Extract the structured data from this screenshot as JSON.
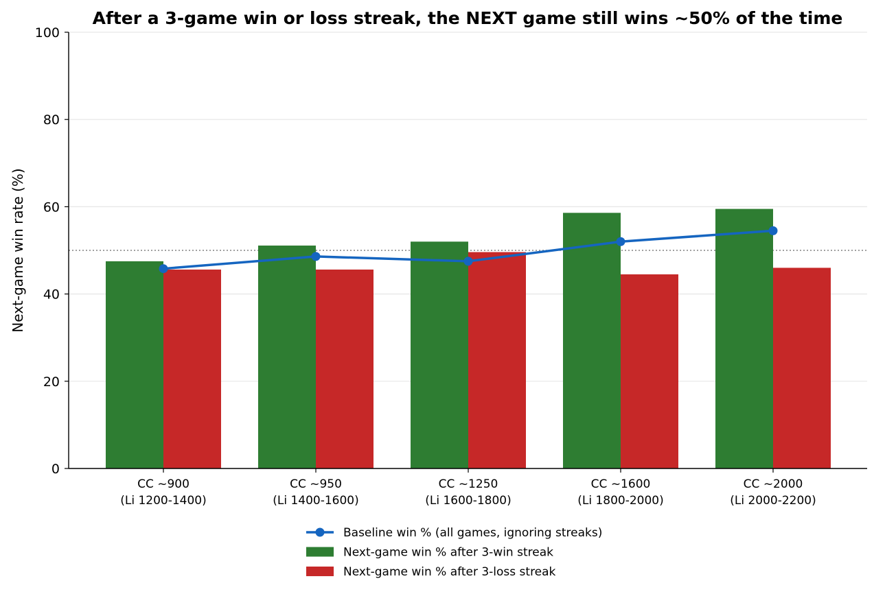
{
  "chart_data": {
    "type": "bar",
    "title": "After a 3-game win or loss streak, the NEXT game still wins ~50% of the time",
    "xlabel": "",
    "ylabel": "Next-game win rate (%)",
    "ylim": [
      0,
      100
    ],
    "yticks": [
      "0",
      "20",
      "40",
      "60",
      "80",
      "100"
    ],
    "grid": "horizontal",
    "legend_position": "bottom-center",
    "reference_line": 50,
    "categories": [
      [
        "CC ~900",
        "(Li 1200-1400)"
      ],
      [
        "CC ~950",
        "(Li 1400-1600)"
      ],
      [
        "CC ~1250",
        "(Li 1600-1800)"
      ],
      [
        "CC ~1600",
        "(Li 1800-2000)"
      ],
      [
        "CC ~2000",
        "(Li 2000-2200)"
      ]
    ],
    "series": [
      {
        "name": "Next-game win % after 3-win streak",
        "kind": "bar",
        "color": "#2e7d32",
        "values": [
          47.5,
          51.1,
          52.0,
          58.6,
          59.5
        ]
      },
      {
        "name": "Next-game win % after 3-loss streak",
        "kind": "bar",
        "color": "#c62828",
        "values": [
          45.6,
          45.6,
          49.6,
          44.5,
          46.0
        ]
      },
      {
        "name": "Baseline win % (all games, ignoring streaks)",
        "kind": "line",
        "color": "#1565c0",
        "values": [
          45.8,
          48.6,
          47.5,
          52.0,
          54.5
        ]
      }
    ],
    "legend_order": [
      2,
      0,
      1
    ]
  }
}
